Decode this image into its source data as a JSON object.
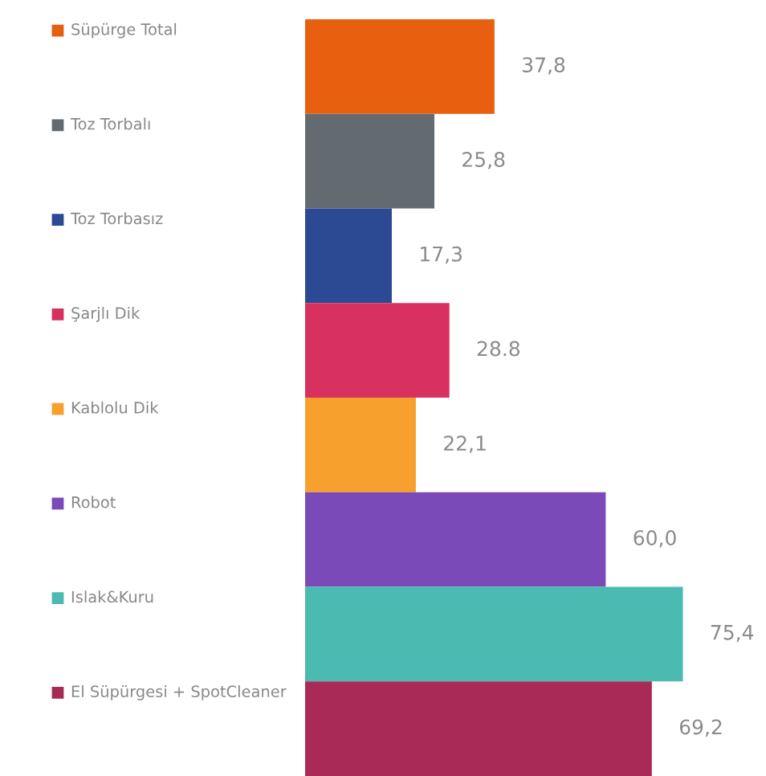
{
  "chart_data": {
    "type": "bar",
    "orientation": "horizontal",
    "categories": [
      "Süpürge Total",
      "Toz Torbalı",
      "Toz Torbasız",
      "Şarjlı Dik",
      "Kablolu Dik",
      "Robot",
      "Islak&Kuru",
      "El Süpürgesi + SpotCleaner"
    ],
    "values": [
      37.8,
      25.8,
      17.3,
      28.8,
      22.1,
      60.0,
      75.4,
      69.2
    ],
    "colors": [
      "#e8600f",
      "#646b70",
      "#2c4a94",
      "#d8305f",
      "#f7a02d",
      "#7a4ab8",
      "#4bbab0",
      "#a92a56"
    ],
    "value_labels": [
      "37,8",
      "25,8",
      "17,3",
      "28.8",
      "22,1",
      "60,0",
      "75,4",
      "69,2"
    ],
    "grid": false,
    "legend": false
  }
}
